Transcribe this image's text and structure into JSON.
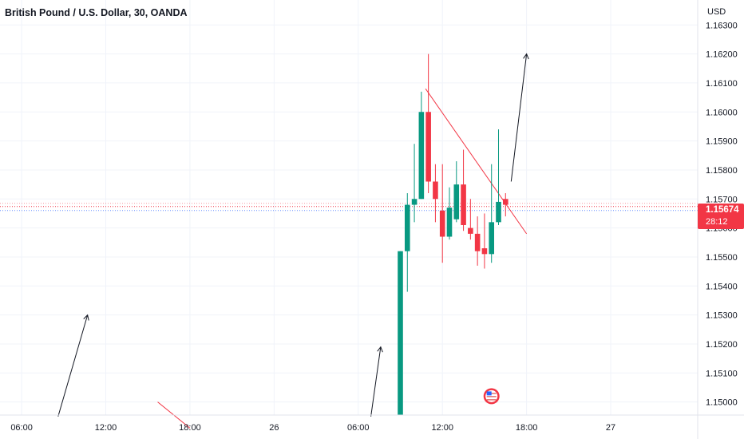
{
  "header": {
    "title": "British Pound / U.S. Dollar, 30, OANDA"
  },
  "price_axis": {
    "currency": "USD"
  },
  "last_price": {
    "value": "1.15674",
    "countdown": "28:12",
    "color": "#f23645"
  },
  "colors": {
    "up": "#089981",
    "down": "#f23645",
    "grid": "#f0f3fa",
    "trendline": "#f23645",
    "arrow": "#131722"
  },
  "icons": {
    "event_marker": "us-flag-icon"
  },
  "chart_data": {
    "type": "candlestick",
    "title": "British Pound / U.S. Dollar, 30, OANDA",
    "y_ticks": [
      "1.16300",
      "1.16200",
      "1.16100",
      "1.16000",
      "1.15900",
      "1.15800",
      "1.15700",
      "1.15600",
      "1.15500",
      "1.15400",
      "1.15300",
      "1.15200",
      "1.15100",
      "1.15000"
    ],
    "x_ticks": [
      {
        "label": "06:00",
        "time": 6
      },
      {
        "label": "12:00",
        "time": 12
      },
      {
        "label": "18:00",
        "time": 18
      },
      {
        "label": "26",
        "time": 24
      },
      {
        "label": "06:00",
        "time": 30
      },
      {
        "label": "12:00",
        "time": 36
      },
      {
        "label": "18:00",
        "time": 42
      },
      {
        "label": "27",
        "time": 48
      }
    ],
    "ylim": [
      1.14955,
      1.16375
    ],
    "xlim": [
      4.8,
      54.2
    ],
    "grid": true,
    "candles": [
      {
        "time": 33.0,
        "open": 1.149,
        "high": 1.1552,
        "low": 1.1488,
        "close": 1.1552
      },
      {
        "time": 33.5,
        "open": 1.1552,
        "high": 1.1572,
        "low": 1.1538,
        "close": 1.1568
      },
      {
        "time": 34.0,
        "open": 1.1568,
        "high": 1.1589,
        "low": 1.1562,
        "close": 1.157
      },
      {
        "time": 34.5,
        "open": 1.157,
        "high": 1.1607,
        "low": 1.157,
        "close": 1.16
      },
      {
        "time": 35.0,
        "open": 1.16,
        "high": 1.162,
        "low": 1.1572,
        "close": 1.1576
      },
      {
        "time": 35.5,
        "open": 1.1576,
        "high": 1.1582,
        "low": 1.1562,
        "close": 1.157
      },
      {
        "time": 36.0,
        "open": 1.1566,
        "high": 1.1582,
        "low": 1.1548,
        "close": 1.1557
      },
      {
        "time": 36.5,
        "open": 1.1557,
        "high": 1.1574,
        "low": 1.1556,
        "close": 1.1567
      },
      {
        "time": 37.0,
        "open": 1.1563,
        "high": 1.1583,
        "low": 1.1562,
        "close": 1.1575
      },
      {
        "time": 37.5,
        "open": 1.1575,
        "high": 1.1587,
        "low": 1.1559,
        "close": 1.1561
      },
      {
        "time": 38.0,
        "open": 1.156,
        "high": 1.157,
        "low": 1.1556,
        "close": 1.1558
      },
      {
        "time": 38.5,
        "open": 1.1558,
        "high": 1.1564,
        "low": 1.1547,
        "close": 1.1552
      },
      {
        "time": 39.0,
        "open": 1.1553,
        "high": 1.1565,
        "low": 1.1546,
        "close": 1.1551
      },
      {
        "time": 39.5,
        "open": 1.1551,
        "high": 1.1582,
        "low": 1.1548,
        "close": 1.1562
      },
      {
        "time": 40.0,
        "open": 1.1562,
        "high": 1.1594,
        "low": 1.1561,
        "close": 1.1569
      },
      {
        "time": 40.5,
        "open": 1.157,
        "high": 1.1572,
        "low": 1.1564,
        "close": 1.1568
      }
    ],
    "price_line": 1.15674,
    "trendline": [
      {
        "time": 34.8,
        "price": 1.1608
      },
      {
        "time": 42.0,
        "price": 1.1558
      }
    ],
    "red_lines": [
      [
        {
          "time": 15.7,
          "price": 1.15
        },
        {
          "time": 18.0,
          "price": 1.1491
        }
      ]
    ],
    "arrows": [
      [
        {
          "time": 8.6,
          "price": 1.1495
        },
        {
          "time": 10.7,
          "price": 1.153
        }
      ],
      [
        {
          "time": 30.9,
          "price": 1.1495
        },
        {
          "time": 31.6,
          "price": 1.1519
        }
      ],
      [
        {
          "time": 40.9,
          "price": 1.1576
        },
        {
          "time": 42.0,
          "price": 1.162
        }
      ]
    ],
    "event_markers": [
      {
        "time": 39.5,
        "price": 1.1502
      }
    ]
  }
}
